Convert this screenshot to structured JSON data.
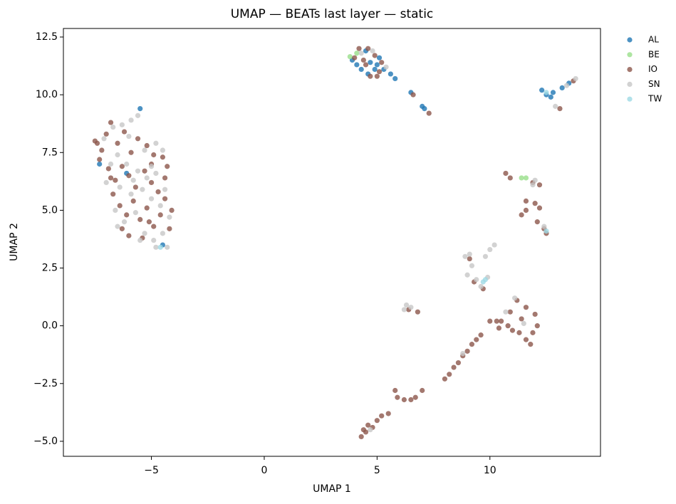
{
  "chart_data": {
    "type": "scatter",
    "title": "UMAP — BEATs last layer — static",
    "xlabel": "UMAP 1",
    "ylabel": "UMAP 2",
    "xlim": [
      -8.9,
      14.9
    ],
    "ylim": [
      -5.65,
      12.87
    ],
    "xticks": [
      {
        "value": -5,
        "label": "−5"
      },
      0,
      5,
      10
    ],
    "yticks": [
      {
        "value": -5,
        "label": "−5.0"
      },
      {
        "value": -2.5,
        "label": "−2.5"
      },
      {
        "value": 0,
        "label": "0.0"
      },
      2.5,
      {
        "value": 5,
        "label": "5.0"
      },
      7.5,
      {
        "value": 10,
        "label": "10.0"
      },
      12.5
    ],
    "grid": false,
    "legend": "outside right",
    "series": [
      {
        "name": "AL",
        "color": "#1f77b4",
        "x": [
          3.9,
          4.3,
          4.5,
          4.7,
          4.9,
          5.1,
          5.3,
          5.6,
          5.8,
          4.6,
          5.0,
          4.1,
          6.5,
          7.0,
          7.1,
          12.3,
          12.5,
          12.7,
          12.8,
          13.2,
          13.5,
          -5.5,
          -7.3,
          -4.5,
          -6.1
        ],
        "values": [
          11.5,
          11.1,
          11.9,
          11.4,
          11.1,
          11.6,
          11.1,
          10.9,
          10.7,
          10.9,
          11.3,
          11.3,
          10.1,
          9.5,
          9.4,
          10.2,
          10.0,
          9.9,
          10.1,
          10.3,
          10.5,
          9.4,
          7.0,
          3.5,
          6.6
        ]
      },
      {
        "name": "BE",
        "color": "#98df8a",
        "x": [
          3.8,
          4.1,
          11.4,
          11.6
        ],
        "values": [
          11.65,
          11.8,
          6.4,
          6.4
        ]
      },
      {
        "name": "IO",
        "color": "#8c564b",
        "x": [
          -7.5,
          -7.2,
          -7.0,
          -6.8,
          -6.5,
          -6.2,
          -5.9,
          -5.6,
          -5.2,
          -4.9,
          -4.5,
          -4.3,
          -7.3,
          -6.9,
          -6.6,
          -6.3,
          -6.0,
          -5.7,
          -5.3,
          -5.0,
          -4.7,
          -4.4,
          -4.1,
          -6.7,
          -6.4,
          -6.1,
          -5.8,
          -5.5,
          -5.2,
          -4.9,
          -4.6,
          -4.2,
          -6.3,
          -6.0,
          -5.4,
          -5.1,
          -7.4,
          -6.8,
          -5.0,
          -4.4,
          4.2,
          4.6,
          4.9,
          5.2,
          4.5,
          4.7,
          5.0,
          4.0,
          4.4,
          5.1,
          6.6,
          7.3,
          13.1,
          13.7,
          10.7,
          10.9,
          11.9,
          12.2,
          11.6,
          11.4,
          11.6,
          12.0,
          12.2,
          12.4,
          12.1,
          12.5,
          10.5,
          10.8,
          11.0,
          11.3,
          11.6,
          11.8,
          11.9,
          12.1,
          12.0,
          11.6,
          11.2,
          10.9,
          10.4,
          11.4,
          8.0,
          8.2,
          8.4,
          8.6,
          8.8,
          9.0,
          9.2,
          9.4,
          9.6,
          10.0,
          10.3,
          4.3,
          4.4,
          4.6,
          4.8,
          5.0,
          5.2,
          5.5,
          4.5,
          5.8,
          5.9,
          6.2,
          6.5,
          6.7,
          7.0,
          9.1,
          9.3,
          9.7,
          6.4,
          6.8
        ],
        "values": [
          8.0,
          7.6,
          8.3,
          8.8,
          7.9,
          8.4,
          7.5,
          8.1,
          7.8,
          7.4,
          7.3,
          6.9,
          7.2,
          6.8,
          6.3,
          6.9,
          6.5,
          6.0,
          6.7,
          6.2,
          5.8,
          5.5,
          5.0,
          5.7,
          5.2,
          4.8,
          5.4,
          4.6,
          5.1,
          4.3,
          4.8,
          4.2,
          4.2,
          3.9,
          3.8,
          4.5,
          7.9,
          6.4,
          7.0,
          6.4,
          12.0,
          12.0,
          11.7,
          11.4,
          11.3,
          10.8,
          10.8,
          11.6,
          11.5,
          11.0,
          10.0,
          9.2,
          9.4,
          10.6,
          6.6,
          6.4,
          6.2,
          6.1,
          5.4,
          4.8,
          5.0,
          5.3,
          5.1,
          4.2,
          4.5,
          4.0,
          0.2,
          0.0,
          -0.2,
          -0.3,
          -0.6,
          -0.8,
          -0.3,
          0.0,
          0.5,
          0.8,
          1.1,
          0.6,
          -0.1,
          0.3,
          -2.3,
          -2.1,
          -1.8,
          -1.6,
          -1.3,
          -1.1,
          -0.8,
          -0.6,
          -0.4,
          0.2,
          0.2,
          -4.8,
          -4.5,
          -4.3,
          -4.4,
          -4.1,
          -3.9,
          -3.8,
          -4.6,
          -2.8,
          -3.1,
          -3.2,
          -3.2,
          -3.1,
          -2.8,
          2.9,
          1.9,
          1.6,
          0.7,
          0.6
        ]
      },
      {
        "name": "SN",
        "color": "#c7c7c7",
        "x": [
          -7.1,
          -6.7,
          -6.3,
          -5.9,
          -5.6,
          -6.0,
          -5.3,
          -4.8,
          -4.5,
          -6.5,
          -6.1,
          -5.6,
          -5.2,
          -4.8,
          -7.0,
          -6.4,
          -5.9,
          -5.4,
          -5.0,
          -4.6,
          -4.2,
          -6.6,
          -6.2,
          -5.7,
          -5.3,
          -4.9,
          -4.5,
          -4.3,
          -6.5,
          -5.5,
          -4.8,
          -6.8,
          -5.0,
          -4.4,
          -5.8,
          4.3,
          4.8,
          5.4,
          12.0,
          11.9,
          12.4,
          13.8,
          13.4,
          12.9,
          11.1,
          10.7,
          11.5,
          8.8,
          4.7,
          8.9,
          9.1,
          9.2,
          9.0,
          9.4,
          9.6,
          9.8,
          10.0,
          10.2,
          9.9,
          6.3,
          6.2,
          6.5
        ],
        "values": [
          8.1,
          8.6,
          8.7,
          8.9,
          9.1,
          8.2,
          7.6,
          7.9,
          7.6,
          7.4,
          7.0,
          6.7,
          6.4,
          6.6,
          6.2,
          6.0,
          5.7,
          5.9,
          5.5,
          5.2,
          4.7,
          5.0,
          4.5,
          4.9,
          4.0,
          3.7,
          4.0,
          3.4,
          4.3,
          3.7,
          3.4,
          7.0,
          6.9,
          5.9,
          6.3,
          11.8,
          11.9,
          11.2,
          6.3,
          6.1,
          4.3,
          10.7,
          10.4,
          9.5,
          1.2,
          0.6,
          0.1,
          -1.2,
          -4.5,
          3.0,
          3.1,
          2.6,
          2.2,
          2.0,
          1.7,
          3.0,
          3.3,
          3.5,
          2.1,
          0.9,
          0.7,
          0.8
        ]
      },
      {
        "name": "TW",
        "color": "#9edae5",
        "x": [
          9.8,
          12.5,
          12.5,
          -4.6,
          9.7
        ],
        "values": [
          2.0,
          4.1,
          10.1,
          3.4,
          1.9
        ]
      }
    ]
  }
}
